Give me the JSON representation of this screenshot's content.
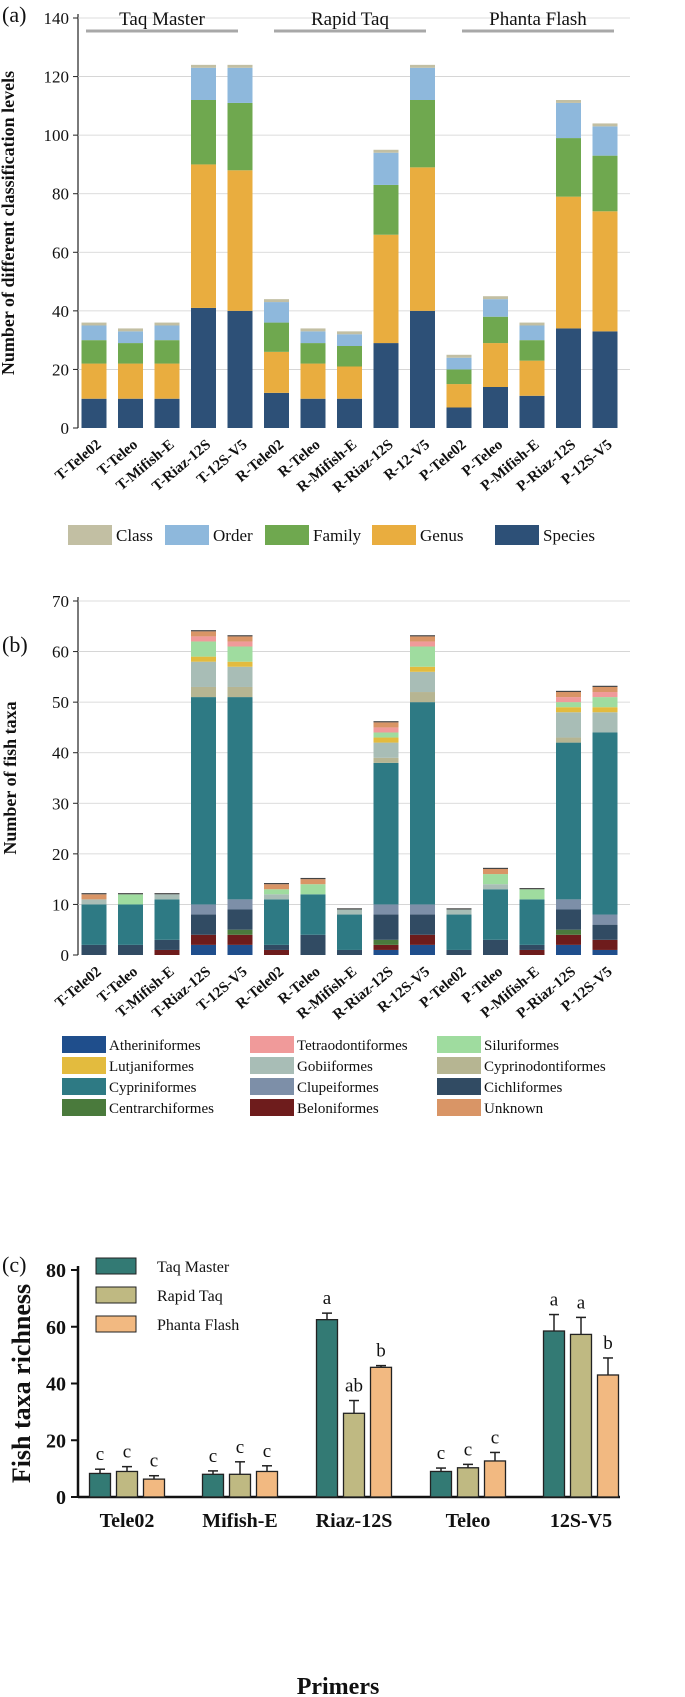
{
  "colors": {
    "Class": "#c2bfa3",
    "Order": "#8eb8dc",
    "Family": "#6fa84f",
    "Genus": "#e9ad3f",
    "Species": "#2d5077",
    "Atheriniformes": "#1f4e8c",
    "Tetraodontiformes": "#f09a9a",
    "Siluriformes": "#9fdc9f",
    "Lutjaniformes": "#e3bb3e",
    "Gobiiformes": "#a8bdb6",
    "Cyprinodontiformes": "#b6b592",
    "Cypriniformes": "#2e7a84",
    "Clupeiformes": "#7d8fa8",
    "Cichliformes": "#314b63",
    "Centrarchiformes": "#4a7a3c",
    "Beloniformes": "#6e1c1c",
    "Unknown": "#d99566",
    "TaqMaster": "#337a74",
    "RapidTaq": "#bfb982",
    "PhantaFlash": "#f2b981"
  },
  "chart_data": [
    {
      "panel": "(a)",
      "type": "bar",
      "stacked": true,
      "ylabel": "Number of different classification levels",
      "ylim": [
        0,
        140
      ],
      "yticks": [
        0,
        20,
        40,
        60,
        80,
        100,
        120,
        140
      ],
      "groups": [
        "Taq Master",
        "Rapid Taq",
        "Phanta Flash"
      ],
      "categories": [
        "T-Tele02",
        "T-Teleo",
        "T-Mifish-E",
        "T-Riaz-12S",
        "T-12S-V5",
        "R-Tele02",
        "R-Teleo",
        "R-Mifish-E",
        "R-Riaz-12S",
        "R-12-V5",
        "P-Tele02",
        "P-Teleo",
        "P-Mifish-E",
        "P-Riaz-12S",
        "P-12S-V5"
      ],
      "series": [
        {
          "name": "Species",
          "values": [
            10,
            10,
            10,
            41,
            40,
            12,
            10,
            10,
            29,
            40,
            7,
            14,
            11,
            34,
            33
          ]
        },
        {
          "name": "Genus",
          "values": [
            12,
            12,
            12,
            49,
            48,
            14,
            12,
            11,
            37,
            49,
            8,
            15,
            12,
            45,
            41
          ]
        },
        {
          "name": "Family",
          "values": [
            8,
            7,
            8,
            22,
            23,
            10,
            7,
            7,
            17,
            23,
            5,
            9,
            7,
            20,
            19
          ]
        },
        {
          "name": "Order",
          "values": [
            5,
            4,
            5,
            11,
            12,
            7,
            4,
            4,
            11,
            11,
            4,
            6,
            5,
            12,
            10
          ]
        },
        {
          "name": "Class",
          "values": [
            1,
            1,
            1,
            1,
            1,
            1,
            1,
            1,
            1,
            1,
            1,
            1,
            1,
            1,
            1
          ]
        }
      ],
      "legend": [
        "Class",
        "Order",
        "Family",
        "Genus",
        "Species"
      ]
    },
    {
      "panel": "(b)",
      "type": "bar",
      "stacked": true,
      "ylabel": "Number of fish taxa",
      "ylim": [
        0,
        70
      ],
      "yticks": [
        0,
        10,
        20,
        30,
        40,
        50,
        60,
        70
      ],
      "categories": [
        "T-Tele02",
        "T-Teleo",
        "T-Mifish-E",
        "T-Riaz-12S",
        "T-12S-V5",
        "R-Tele02",
        "R-Teleo",
        "R-Mifish-E",
        "R-Riaz-12S",
        "R-12S-V5",
        "P-Tele02",
        "P-Teleo",
        "P-Mifish-E",
        "P-Riaz-12S",
        "P-12S-V5"
      ],
      "series": [
        {
          "name": "Atheriniformes",
          "values": [
            0,
            0,
            0,
            2,
            2,
            0,
            0,
            0,
            1,
            2,
            0,
            0,
            0,
            2,
            1
          ]
        },
        {
          "name": "Beloniformes",
          "values": [
            0,
            0,
            1,
            2,
            2,
            1,
            0,
            0,
            1,
            2,
            0,
            0,
            1,
            2,
            2
          ]
        },
        {
          "name": "Centrarchiformes",
          "values": [
            0,
            0,
            0,
            0,
            1,
            0,
            0,
            0,
            1,
            0,
            0,
            0,
            0,
            1,
            0
          ]
        },
        {
          "name": "Cichliformes",
          "values": [
            2,
            2,
            2,
            4,
            4,
            1,
            4,
            1,
            5,
            4,
            1,
            3,
            1,
            4,
            3
          ]
        },
        {
          "name": "Clupeiformes",
          "values": [
            0,
            0,
            0,
            2,
            2,
            0,
            0,
            0,
            2,
            2,
            0,
            0,
            0,
            2,
            2
          ]
        },
        {
          "name": "Cypriniformes",
          "values": [
            8,
            8,
            8,
            41,
            40,
            9,
            8,
            7,
            28,
            40,
            7,
            10,
            9,
            31,
            36
          ]
        },
        {
          "name": "Cyprinodontiformes",
          "values": [
            0,
            0,
            0,
            2,
            2,
            0,
            0,
            0,
            1,
            2,
            0,
            0,
            0,
            1,
            0
          ]
        },
        {
          "name": "Gobiiformes",
          "values": [
            1,
            0,
            1,
            5,
            4,
            1,
            0,
            1,
            3,
            4,
            1,
            1,
            0,
            5,
            4
          ]
        },
        {
          "name": "Lutjaniformes",
          "values": [
            0,
            0,
            0,
            1,
            1,
            0,
            0,
            0,
            1,
            1,
            0,
            0,
            0,
            1,
            1
          ]
        },
        {
          "name": "Siluriformes",
          "values": [
            0,
            2,
            0,
            3,
            3,
            1,
            2,
            0,
            1,
            4,
            0,
            2,
            2,
            1,
            2
          ]
        },
        {
          "name": "Tetraodontiformes",
          "values": [
            0,
            0,
            0,
            1,
            1,
            0,
            0,
            0,
            1,
            1,
            0,
            0,
            0,
            1,
            1
          ]
        },
        {
          "name": "Unknown",
          "values": [
            1,
            0,
            0,
            1,
            1,
            1,
            1,
            0,
            1,
            1,
            0,
            1,
            0,
            1,
            1
          ]
        }
      ],
      "legend": [
        "Atheriniformes",
        "Tetraodontiformes",
        "Siluriformes",
        "Lutjaniformes",
        "Gobiiformes",
        "Cyprinodontiformes",
        "Cypriniformes",
        "Clupeiformes",
        "Cichliformes",
        "Centrarchiformes",
        "Beloniformes",
        "Unknown"
      ]
    },
    {
      "panel": "(c)",
      "type": "bar",
      "stacked": false,
      "ylabel": "Fish taxa richness",
      "xlabel": "Primers",
      "ylim": [
        0,
        80
      ],
      "yticks": [
        0,
        20,
        40,
        60,
        80
      ],
      "categories": [
        "Tele02",
        "Mifish-E",
        "Riaz-12S",
        "Teleo",
        "12S-V5"
      ],
      "series": [
        {
          "name": "Taq Master",
          "values": [
            8.3,
            8.0,
            62.5,
            9.0,
            58.5
          ],
          "errors": [
            1.5,
            1.2,
            2.3,
            1.2,
            5.8
          ],
          "letters": [
            "c",
            "c",
            "a",
            "c",
            "a"
          ]
        },
        {
          "name": "Rapid Taq",
          "values": [
            9.0,
            8.0,
            29.5,
            10.3,
            57.3
          ],
          "errors": [
            1.7,
            4.4,
            4.5,
            1.2,
            6.0
          ],
          "letters": [
            "c",
            "c",
            "ab",
            "c",
            "a"
          ]
        },
        {
          "name": "Phanta Flash",
          "values": [
            6.3,
            9.0,
            45.7,
            12.7,
            43.0
          ],
          "errors": [
            1.2,
            2.0,
            0.6,
            3.0,
            6.0
          ],
          "letters": [
            "c",
            "c",
            "b",
            "c",
            "b"
          ]
        }
      ],
      "legend": [
        "Taq Master",
        "Rapid Taq",
        "Phanta Flash"
      ]
    }
  ]
}
